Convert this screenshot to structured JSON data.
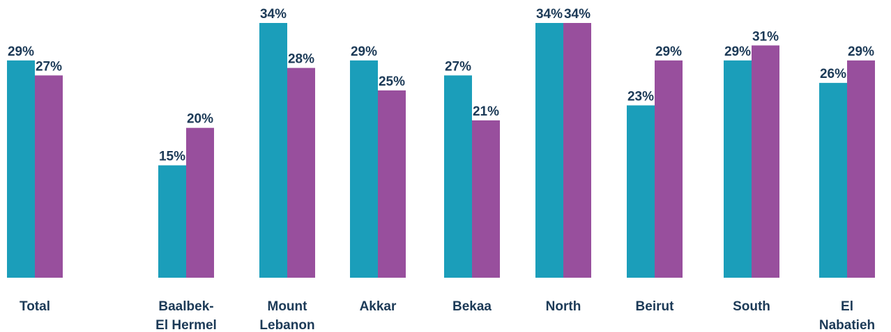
{
  "chart_data": {
    "type": "bar",
    "categories": [
      "Total",
      "Baalbek-El Hermel",
      "Mount Lebanon",
      "Akkar",
      "Bekaa",
      "North",
      "Beirut",
      "South",
      "El Nabatieh"
    ],
    "series": [
      {
        "color": "#1b9eba",
        "values": [
          29,
          15,
          34,
          29,
          27,
          34,
          23,
          29,
          26
        ],
        "value_labels": [
          "29%",
          "15%",
          "34%",
          "29%",
          "27%",
          "34%",
          "23%",
          "29%",
          "26%"
        ]
      },
      {
        "color": "#984f9d",
        "values": [
          27,
          20,
          28,
          25,
          21,
          34,
          29,
          31,
          29
        ],
        "value_labels": [
          "27%",
          "20%",
          "28%",
          "25%",
          "21%",
          "34%",
          "29%",
          "31%",
          "29%"
        ]
      }
    ],
    "ylim": [
      0,
      34
    ]
  }
}
